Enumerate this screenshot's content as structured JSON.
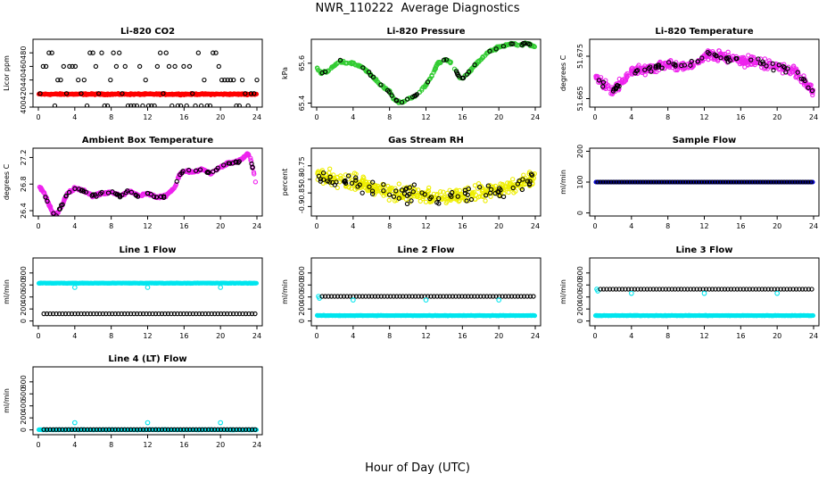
{
  "title": "NWR_110222  Average Diagnostics",
  "xlabel": "Hour of Day (UTC)",
  "chart_data": [
    {
      "type": "scatter",
      "title": "Li-820 CO2",
      "ylabel": "Licor ppm",
      "xlim": [
        0,
        24
      ],
      "xticks": [
        0,
        4,
        8,
        12,
        16,
        20,
        24
      ],
      "ylim": [
        400,
        500
      ],
      "yticks": [
        400,
        420,
        440,
        460,
        480
      ],
      "generator": "co2"
    },
    {
      "type": "scatter",
      "title": "Li-820 Pressure",
      "ylabel": "kPa",
      "xlim": [
        0,
        24
      ],
      "xticks": [
        0,
        4,
        8,
        12,
        16,
        20,
        24
      ],
      "ylim": [
        65.38,
        65.72
      ],
      "yticks": [
        65.4,
        65.6
      ],
      "colors": [
        "#33cc33",
        "#000000"
      ],
      "profile_x": [
        0,
        0.5,
        1.2,
        2,
        2.6,
        3.2,
        4,
        5,
        6,
        7,
        8,
        8.5,
        9.2,
        10,
        11,
        12,
        12.8,
        13.3,
        14,
        14.6,
        15.3,
        15.8,
        16.2,
        17,
        18,
        19,
        20,
        20.8,
        21.5,
        22.2,
        23,
        23.6,
        24
      ],
      "profile_y": [
        65.58,
        65.55,
        65.56,
        65.59,
        65.61,
        65.6,
        65.6,
        65.58,
        65.54,
        65.49,
        65.46,
        65.42,
        65.4,
        65.42,
        65.44,
        65.49,
        65.55,
        65.6,
        65.62,
        65.61,
        65.56,
        65.52,
        65.53,
        65.57,
        65.62,
        65.66,
        65.68,
        65.69,
        65.7,
        65.69,
        65.7,
        65.69,
        65.68
      ],
      "noise": 0.008,
      "black_noise": 0.008,
      "n": 300,
      "black_every": 7
    },
    {
      "type": "scatter",
      "title": "Li-820 Temperature",
      "ylabel": "degrees C",
      "xlim": [
        0,
        24
      ],
      "xticks": [
        0,
        4,
        8,
        12,
        16,
        20,
        24
      ],
      "ylim": [
        51.663,
        51.679
      ],
      "yticks": [
        51.665,
        51.675
      ],
      "colors": [
        "#ee22ee",
        "#000000"
      ],
      "profile_x": [
        0,
        1,
        2,
        3,
        4,
        6,
        8,
        10,
        11.5,
        12.5,
        14,
        16,
        18,
        20,
        22,
        23,
        24
      ],
      "profile_y": [
        51.6705,
        51.668,
        51.667,
        51.669,
        51.6715,
        51.672,
        51.673,
        51.6725,
        51.674,
        51.6755,
        51.675,
        51.674,
        51.6735,
        51.6725,
        51.6715,
        51.669,
        51.6665
      ],
      "noise": 0.0016,
      "black_noise": 0.0012,
      "n": 420,
      "black_every": 6
    },
    {
      "type": "scatter",
      "title": "Ambient Box Temperature",
      "ylabel": "degrees C",
      "xlim": [
        0,
        24
      ],
      "xticks": [
        0,
        4,
        8,
        12,
        16,
        20,
        24
      ],
      "ylim": [
        26.32,
        27.34
      ],
      "yticks": [
        26.4,
        26.8,
        27.2
      ],
      "colors": [
        "#ee22ee",
        "#000000"
      ],
      "profile_x": [
        0,
        0.6,
        1.2,
        1.6,
        2,
        2.5,
        3.2,
        4,
        5,
        6,
        7,
        8,
        9,
        10,
        11,
        12,
        13,
        14,
        15,
        15.5,
        16,
        17,
        18,
        19,
        20,
        21,
        22,
        22.5,
        23,
        23.3,
        23.7,
        24
      ],
      "profile_y": [
        26.78,
        26.68,
        26.48,
        26.36,
        26.34,
        26.46,
        26.66,
        26.74,
        26.7,
        26.62,
        26.66,
        26.68,
        26.62,
        26.7,
        26.62,
        26.66,
        26.6,
        26.62,
        26.76,
        26.94,
        27.0,
        26.98,
        27.02,
        26.96,
        27.06,
        27.12,
        27.14,
        27.2,
        27.26,
        27.18,
        26.94,
        26.72
      ],
      "noise": 0.025,
      "black_noise": 0.03,
      "n": 420,
      "black_every": 6
    },
    {
      "type": "scatter",
      "title": "Gas Stream RH",
      "ylabel": "percent",
      "xlim": [
        0,
        24
      ],
      "xticks": [
        0,
        4,
        8,
        12,
        16,
        20,
        24
      ],
      "ylim": [
        -0.935,
        -0.685
      ],
      "yticks": [
        -0.9,
        -0.85,
        -0.8,
        -0.75
      ],
      "colors": [
        "#eeee00",
        "#000000"
      ],
      "profile_x": [
        0,
        2,
        4,
        6,
        8,
        10,
        12,
        14,
        16,
        18,
        20,
        22,
        24
      ],
      "profile_y": [
        -0.79,
        -0.8,
        -0.81,
        -0.83,
        -0.845,
        -0.85,
        -0.86,
        -0.865,
        -0.86,
        -0.85,
        -0.84,
        -0.82,
        -0.79
      ],
      "noise": 0.04,
      "black_noise": 0.045,
      "n": 420,
      "black_every": 5
    },
    {
      "type": "scatter",
      "title": "Sample Flow",
      "ylabel": "ml/min",
      "xlim": [
        0,
        24
      ],
      "xticks": [
        0,
        4,
        8,
        12,
        16,
        20,
        24
      ],
      "ylim": [
        -10,
        210
      ],
      "yticks": [
        0,
        100,
        200
      ],
      "series": [
        {
          "color": "#0000cc",
          "values": [
            {
              "x": [
                0,
                24
              ],
              "y": 100
            }
          ]
        },
        {
          "color": "#000000",
          "values": [
            {
              "x": [
                0,
                24
              ],
              "y": 100
            }
          ]
        }
      ],
      "generator": "flow"
    },
    {
      "type": "scatter",
      "title": "Line 1 Flow",
      "ylabel": "ml/min",
      "xlim": [
        0,
        24
      ],
      "xticks": [
        0,
        4,
        8,
        12,
        16,
        20,
        24
      ],
      "ylim": [
        -80,
        1050
      ],
      "yticks": [
        0,
        200,
        400,
        600,
        800
      ],
      "cyan_level": 630,
      "black_level": 120,
      "cyan_dips": [
        [
          4,
          560
        ],
        [
          12,
          560
        ],
        [
          20,
          560
        ]
      ],
      "generator": "flow2"
    },
    {
      "type": "scatter",
      "title": "Line 2 Flow",
      "ylabel": "ml/min",
      "xlim": [
        0,
        24
      ],
      "xticks": [
        0,
        4,
        8,
        12,
        16,
        20,
        24
      ],
      "ylim": [
        -80,
        1050
      ],
      "yticks": [
        0,
        200,
        400,
        600,
        800
      ],
      "cyan_level": 90,
      "black_level": 410,
      "cyan_dips": [
        [
          4,
          350
        ],
        [
          12,
          350
        ],
        [
          20,
          350
        ]
      ],
      "cyan_start": [
        0.2,
        410
      ],
      "generator": "flow2"
    },
    {
      "type": "scatter",
      "title": "Line 3 Flow",
      "ylabel": "ml/min",
      "xlim": [
        0,
        24
      ],
      "xticks": [
        0,
        4,
        8,
        12,
        16,
        20,
        24
      ],
      "ylim": [
        -80,
        1050
      ],
      "yticks": [
        0,
        200,
        400,
        600,
        800
      ],
      "cyan_level": 90,
      "black_level": 530,
      "cyan_dips": [
        [
          4,
          460
        ],
        [
          12,
          460
        ],
        [
          20,
          460
        ]
      ],
      "cyan_start": [
        0.2,
        530
      ],
      "generator": "flow2"
    },
    {
      "type": "scatter",
      "title": "Line 4 (LT) Flow",
      "ylabel": "ml/min",
      "xlim": [
        0,
        24
      ],
      "xticks": [
        0,
        4,
        8,
        12,
        16,
        20,
        24
      ],
      "ylim": [
        -80,
        1050
      ],
      "yticks": [
        0,
        200,
        400,
        600,
        800
      ],
      "cyan_level": 2,
      "black_level": 5,
      "cyan_dips": [
        [
          4,
          120
        ],
        [
          12,
          120
        ],
        [
          20,
          120
        ]
      ],
      "generator": "flow2"
    }
  ]
}
